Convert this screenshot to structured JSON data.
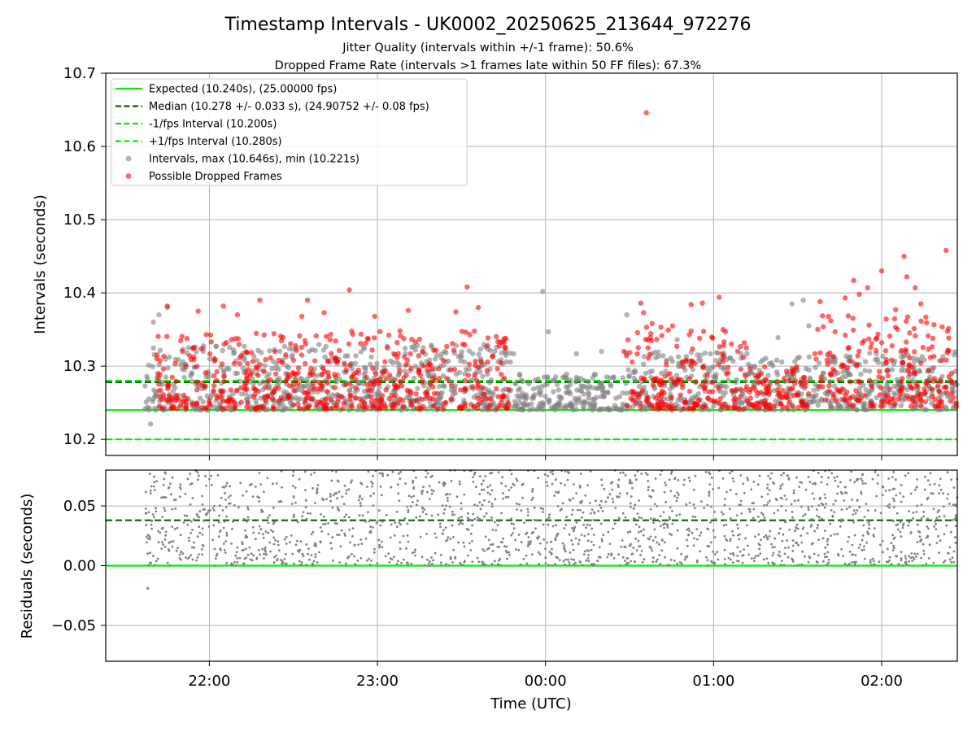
{
  "chart_data": [
    {
      "type": "scatter",
      "title": "Timestamp Intervals - UK0002_20250625_213644_972276",
      "subtitle_1": "Jitter Quality (intervals within +/-1 frame): 50.6%",
      "subtitle_2": "Dropped Frame Rate (intervals >1 frames late within 50 FF files): 67.3%",
      "xlabel": "",
      "ylabel": "Intervals (seconds)",
      "x_range": [
        "21:23",
        "02:27"
      ],
      "ylim": [
        10.178,
        10.7
      ],
      "yticks": [
        10.2,
        10.3,
        10.4,
        10.5,
        10.6,
        10.7
      ],
      "ytick_labels": [
        "10.2",
        "10.3",
        "10.4",
        "10.5",
        "10.6",
        "10.7"
      ],
      "grid": true,
      "legend_position": "upper-left",
      "reference_lines": [
        {
          "name": "Expected (10.240s), (25.00000 fps)",
          "y": 10.24,
          "style": "solid",
          "color": "#00ee00"
        },
        {
          "name": "Median (10.278 +/- 0.033 s), (24.90752 +/- 0.08 fps)",
          "y": 10.278,
          "style": "dashed",
          "color": "#006400"
        },
        {
          "name": "-1/fps Interval (10.200s)",
          "y": 10.2,
          "style": "dashed",
          "color": "#00ee00"
        },
        {
          "name": "+1/fps Interval (10.280s)",
          "y": 10.28,
          "style": "dashed",
          "color": "#00ee00"
        }
      ],
      "series": [
        {
          "name": "Intervals, max (10.646s), min (10.221s)",
          "color": "#808080",
          "approx_count": 1500,
          "points": [
            [
              "21:39",
              10.221
            ],
            [
              "21:40",
              10.36
            ],
            [
              "21:42",
              10.37
            ],
            [
              "21:45",
              10.38
            ],
            [
              "23:59",
              10.402
            ],
            [
              "00:01",
              10.347
            ],
            [
              "00:11",
              10.317
            ],
            [
              "00:20",
              10.32
            ],
            [
              "00:29",
              10.37
            ],
            [
              "00:47",
              10.336
            ],
            [
              "01:23",
              10.339
            ],
            [
              "01:28",
              10.385
            ],
            [
              "01:32",
              10.39
            ],
            [
              "01:34",
              10.355
            ]
          ],
          "density_profile": [
            {
              "from": "21:37",
              "to": "23:50",
              "y_min": 10.24,
              "y_max": 10.33
            },
            {
              "from": "23:50",
              "to": "00:28",
              "y_min": 10.24,
              "y_max": 10.29
            },
            {
              "from": "00:28",
              "to": "02:27",
              "y_min": 10.24,
              "y_max": 10.32
            }
          ]
        },
        {
          "name": "Possible Dropped Frames",
          "color": "#ff0000",
          "approx_count": 1000,
          "points": [
            [
              "21:45",
              10.382
            ],
            [
              "21:56",
              10.375
            ],
            [
              "22:05",
              10.382
            ],
            [
              "22:10",
              10.37
            ],
            [
              "22:18",
              10.39
            ],
            [
              "22:33",
              10.368
            ],
            [
              "22:35",
              10.39
            ],
            [
              "22:41",
              10.373
            ],
            [
              "22:50",
              10.404
            ],
            [
              "22:59",
              10.368
            ],
            [
              "23:11",
              10.376
            ],
            [
              "23:28",
              10.374
            ],
            [
              "23:32",
              10.408
            ],
            [
              "23:36",
              10.38
            ],
            [
              "00:34",
              10.386
            ],
            [
              "00:35",
              10.373
            ],
            [
              "00:36",
              10.646
            ],
            [
              "00:52",
              10.384
            ],
            [
              "00:56",
              10.386
            ],
            [
              "01:02",
              10.394
            ],
            [
              "01:38",
              10.388
            ],
            [
              "01:47",
              10.393
            ],
            [
              "01:50",
              10.417
            ],
            [
              "01:52",
              10.398
            ],
            [
              "01:55",
              10.407
            ],
            [
              "02:00",
              10.43
            ],
            [
              "02:05",
              10.377
            ],
            [
              "02:08",
              10.45
            ],
            [
              "02:09",
              10.422
            ],
            [
              "02:12",
              10.407
            ],
            [
              "02:14",
              10.385
            ],
            [
              "02:23",
              10.458
            ]
          ],
          "density_profile": [
            {
              "from": "21:41",
              "to": "22:38",
              "y_min": 10.242,
              "y_max": 10.345
            },
            {
              "from": "22:38",
              "to": "23:47",
              "y_min": 10.242,
              "y_max": 10.35
            },
            {
              "from": "00:28",
              "to": "01:12",
              "y_min": 10.242,
              "y_max": 10.36
            },
            {
              "from": "01:12",
              "to": "01:34",
              "y_min": 10.242,
              "y_max": 10.3
            },
            {
              "from": "01:36",
              "to": "02:27",
              "y_min": 10.245,
              "y_max": 10.37
            }
          ]
        }
      ]
    },
    {
      "type": "scatter",
      "xlabel": "Time (UTC)",
      "ylabel": "Residuals (seconds)",
      "x_range": [
        "21:23",
        "02:27"
      ],
      "xticks": [
        "22:00",
        "23:00",
        "00:00",
        "01:00",
        "02:00"
      ],
      "ylim": [
        -0.08,
        0.08
      ],
      "yticks": [
        -0.05,
        0.0,
        0.05
      ],
      "ytick_labels": [
        "−0.05",
        "0.00",
        "0.05"
      ],
      "grid": true,
      "reference_lines": [
        {
          "y": 0.0,
          "style": "solid",
          "color": "#00ee00"
        },
        {
          "y": 0.038,
          "style": "dashed",
          "color": "#006400"
        }
      ],
      "series": [
        {
          "color": "#808080",
          "approx_count": 1800,
          "points": [
            [
              "21:38",
              -0.019
            ]
          ],
          "density_profile": [
            {
              "from": "21:37",
              "to": "02:27",
              "y_min": 0.0,
              "y_max": 0.08
            }
          ]
        }
      ]
    }
  ],
  "legend": {
    "entries": [
      {
        "label": "Expected (10.240s), (25.00000 fps)",
        "kind": "line",
        "style": "solid",
        "color": "#00ee00"
      },
      {
        "label": "Median (10.278 +/- 0.033 s), (24.90752 +/- 0.08 fps)",
        "kind": "line",
        "style": "dashed",
        "color": "#006400"
      },
      {
        "label": "-1/fps Interval (10.200s)",
        "kind": "line",
        "style": "dashed",
        "color": "#00ee00"
      },
      {
        "label": "+1/fps Interval (10.280s)",
        "kind": "line",
        "style": "dashed",
        "color": "#00ee00"
      },
      {
        "label": "Intervals, max (10.646s), min (10.221s)",
        "kind": "marker",
        "color": "#808080"
      },
      {
        "label": "Possible Dropped Frames",
        "kind": "marker",
        "color": "#ff0000"
      }
    ]
  }
}
